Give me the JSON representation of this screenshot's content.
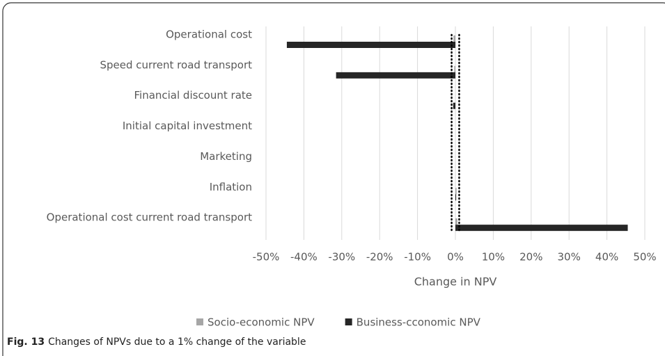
{
  "chart_data": {
    "type": "hbar",
    "categories": [
      "Operational cost",
      "Speed current road transport",
      "Financial discount rate",
      "Initial capital investment",
      "Marketing",
      "Inflation",
      "Operational cost current road transport"
    ],
    "series": [
      {
        "name": "Socio-economic NPV",
        "color": "#a6a6a6",
        "values": [
          -0.5,
          -0.3,
          0,
          0,
          0,
          0.3,
          0.5
        ]
      },
      {
        "name": "Business-cconomic NPV",
        "color": "#262626",
        "values": [
          -44.5,
          -31.5,
          -0.6,
          0,
          0,
          0.2,
          45.5
        ]
      }
    ],
    "xlabel": "Change in NPV",
    "xlim": [
      -50,
      50
    ],
    "xticks": [
      {
        "value": -50,
        "label": "-50%"
      },
      {
        "value": -40,
        "label": "-40%"
      },
      {
        "value": -30,
        "label": "-30%"
      },
      {
        "value": -20,
        "label": "-20%"
      },
      {
        "value": -10,
        "label": "-10%"
      },
      {
        "value": 0,
        "label": "0%"
      },
      {
        "value": 10,
        "label": "10%"
      },
      {
        "value": 20,
        "label": "20%"
      },
      {
        "value": 30,
        "label": "30%"
      },
      {
        "value": 40,
        "label": "40%"
      },
      {
        "value": 50,
        "label": "50%"
      }
    ],
    "reference_lines": [
      -1,
      1
    ],
    "grid": true,
    "legend": "bottom"
  },
  "caption": {
    "label": "Fig. 13",
    "text": "Changes of NPVs due to a 1% change of the variable"
  }
}
